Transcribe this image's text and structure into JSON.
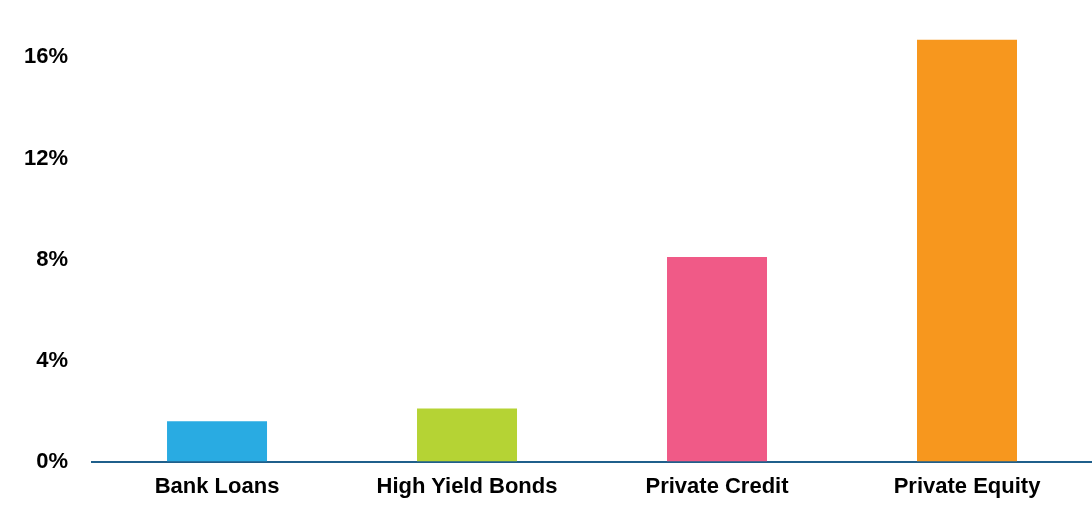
{
  "chart_data": {
    "type": "bar",
    "categories": [
      "Bank Loans",
      "High Yield Bonds",
      "Private Credit",
      "Private Equity"
    ],
    "values": [
      1.6,
      2.1,
      8.1,
      16.7
    ],
    "colors": [
      "#29abe2",
      "#b5d334",
      "#f05a87",
      "#f7971e"
    ],
    "ylim": [
      0,
      16.8
    ],
    "yticks": [
      {
        "value": 0,
        "label": "0%"
      },
      {
        "value": 4,
        "label": "4%"
      },
      {
        "value": 8,
        "label": "8%"
      },
      {
        "value": 12,
        "label": "12%"
      },
      {
        "value": 16,
        "label": "16%"
      }
    ],
    "grid": false,
    "legend": false
  }
}
